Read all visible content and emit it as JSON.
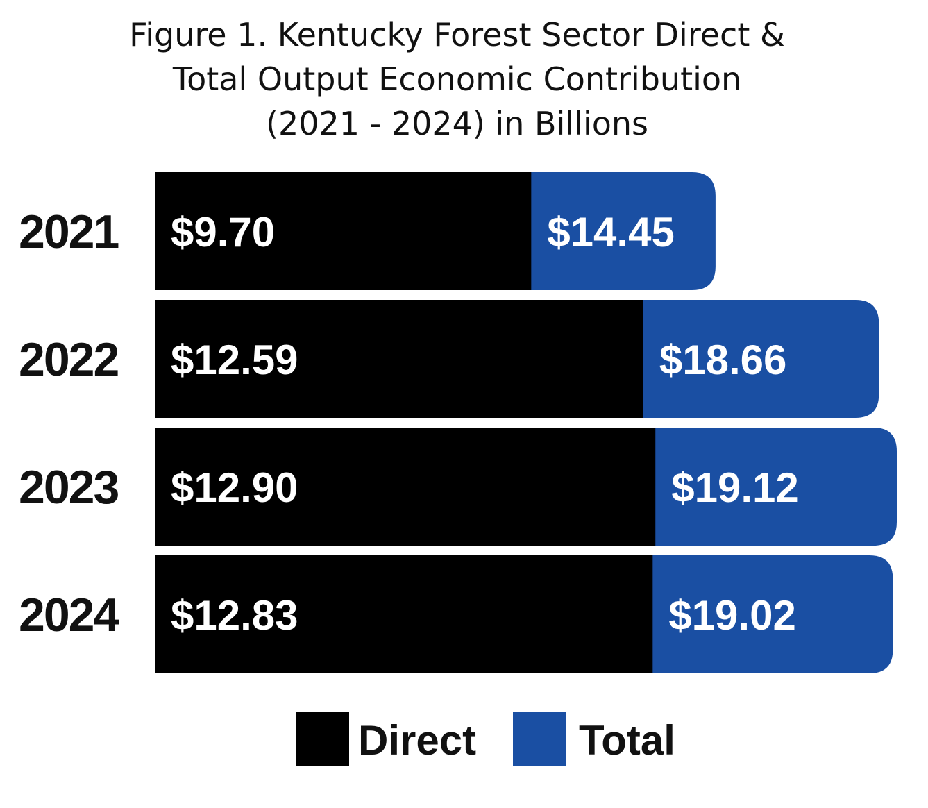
{
  "chart_data": {
    "type": "bar",
    "orientation": "horizontal",
    "stacked": "overlapping",
    "title_lines": [
      "Figure 1. Kentucky Forest Sector Direct &",
      "Total Output Economic Contribution",
      "(2021 - 2024) in Billions"
    ],
    "categories": [
      "2021",
      "2022",
      "2023",
      "2024"
    ],
    "series": [
      {
        "name": "Direct",
        "color": "#000000",
        "values": [
          9.7,
          12.59,
          12.9,
          12.83
        ],
        "labels": [
          "$9.70",
          "$12.59",
          "$12.90",
          "$12.83"
        ]
      },
      {
        "name": "Total",
        "color": "#1a4fa3",
        "values": [
          14.45,
          18.66,
          19.12,
          19.02
        ],
        "labels": [
          "$14.45",
          "$18.66",
          "$19.12",
          "$19.02"
        ]
      }
    ],
    "xlim": [
      0,
      19.12
    ],
    "grid": false,
    "legend_position": "bottom"
  }
}
